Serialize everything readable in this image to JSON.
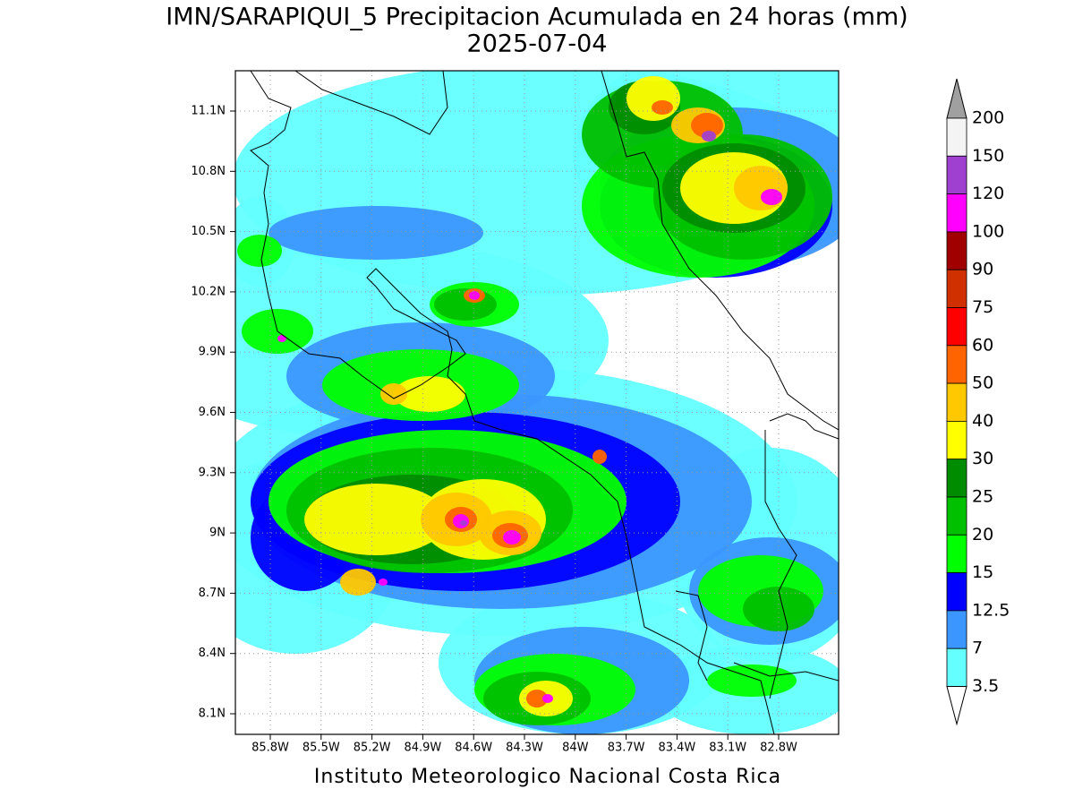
{
  "title": "IMN/SARAPIQUI_5 Precipitacion Acumulada en 24 horas (mm)",
  "subtitle": "2025-07-04",
  "map": {
    "lon_labels": [
      "85.8W",
      "85.5W",
      "85.2W",
      "84.9W",
      "84.6W",
      "84.3W",
      "84W",
      "83.7W",
      "83.4W",
      "83.1W",
      "82.8W"
    ],
    "lat_labels": [
      "11.1N",
      "10.8N",
      "10.5N",
      "10.2N",
      "9.9N",
      "9.6N",
      "9.3N",
      "9N",
      "8.7N",
      "8.4N",
      "8.1N"
    ]
  },
  "colorbar": {
    "labels": [
      "200",
      "150",
      "120",
      "100",
      "90",
      "75",
      "60",
      "50",
      "40",
      "30",
      "25",
      "20",
      "15",
      "12.5",
      "7",
      "3.5"
    ],
    "colors": [
      "#a0a0a0",
      "#f4f4f4",
      "#a040d0",
      "#ff00ff",
      "#a00000",
      "#d03000",
      "#ff0000",
      "#ff6400",
      "#ffc800",
      "#ffff00",
      "#008c00",
      "#00c000",
      "#00ff00",
      "#0000ff",
      "#3c96ff",
      "#64ffff",
      "#ffffff"
    ]
  },
  "footer": "Instituto Meteorologico Nacional Costa Rica"
}
